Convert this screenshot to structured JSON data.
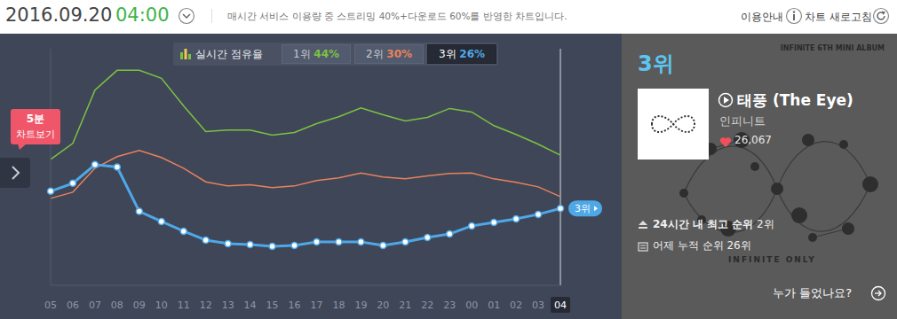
{
  "header": {
    "date": "2016.09.20",
    "time": "04:00",
    "note": "매시간 서비스 이용량 중 스트리밍 40%+다운로드 60%를 반영한 차트입니다.",
    "links": [
      "이용안내",
      "차트 새로고침"
    ]
  },
  "badge": {
    "line1": "5분",
    "line2": "차트보기"
  },
  "chart_data": {
    "type": "line",
    "legend_title": "실시간 점유율",
    "categories": [
      "05",
      "06",
      "07",
      "08",
      "09",
      "10",
      "11",
      "12",
      "13",
      "14",
      "15",
      "16",
      "17",
      "18",
      "19",
      "20",
      "21",
      "22",
      "23",
      "00",
      "01",
      "02",
      "03",
      "04"
    ],
    "series": [
      {
        "name": "1위",
        "share_label": "44%",
        "color": "#7cc242",
        "marker": "none",
        "line_style": "solid",
        "values": [
          42.6,
          48,
          66,
          72.7,
          72.7,
          70,
          60.7,
          52,
          52.5,
          52.5,
          50.8,
          51.7,
          54.7,
          57,
          60,
          57.7,
          55.6,
          56.8,
          59.8,
          58.6,
          54,
          51,
          47.7,
          44
        ]
      },
      {
        "name": "2위",
        "share_label": "30%",
        "color": "#e8825d",
        "marker": "none",
        "line_style": "solid",
        "values": [
          29.4,
          31.5,
          39.6,
          43.5,
          45.6,
          43.2,
          39.6,
          35,
          33.6,
          34,
          33,
          33.6,
          35.4,
          36.3,
          38,
          36.6,
          36,
          37,
          37.8,
          38,
          36,
          34.8,
          33.3,
          30
        ]
      },
      {
        "name": "3위",
        "share_label": "26%",
        "color": "#4ea8e8",
        "marker": "circle",
        "line_style": "solid",
        "values": [
          31.8,
          34.5,
          40.8,
          40,
          25,
          21.6,
          18.3,
          15.3,
          14.1,
          13.8,
          13.2,
          13.5,
          14.7,
          14.7,
          14.7,
          13.5,
          14.7,
          16.2,
          17.4,
          20.1,
          21.3,
          22.5,
          24,
          26
        ]
      }
    ],
    "ylim": [
      0,
      80
    ],
    "tick_labels": "x",
    "annotation": "3위"
  },
  "panel": {
    "rank": "3위",
    "album_caption": "INFINITE 6TH MINI ALBUM",
    "title": "태풍 (The Eye)",
    "artist": "인피니트",
    "likes": "26,067",
    "album_text": "INFINITE ONLY",
    "best_rank_label": "24시간 내 최고 순위",
    "best_rank": "2위",
    "yesterday_label": "어제 누적 순위",
    "yesterday_rank": "26위",
    "who": "누가 들었나요?"
  }
}
